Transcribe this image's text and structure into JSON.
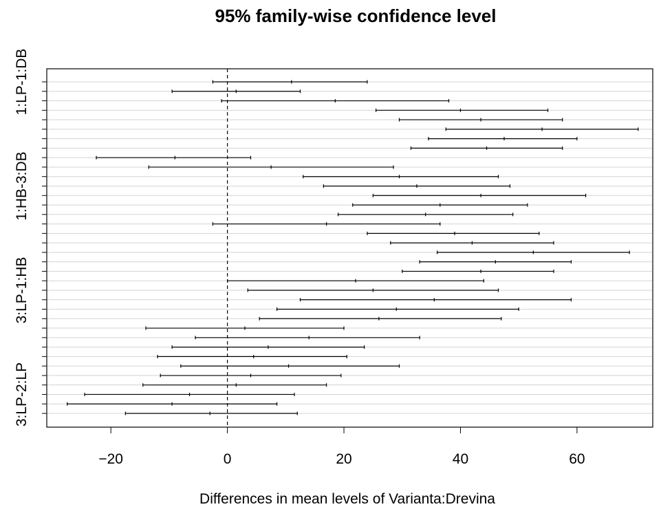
{
  "chart_data": {
    "type": "errorbar",
    "title": "95% family-wise confidence level",
    "xlabel": "Differences in mean levels of Varianta:Drevina",
    "ylabel": "",
    "xlim": [
      -31,
      73
    ],
    "xticks": [
      -20,
      0,
      20,
      40,
      60
    ],
    "reference_line_x": 0,
    "grid": "horizontal",
    "ytick_labels": [
      "1:LP-1:DB",
      "1:HB-3:DB",
      "3:LP-1:HB",
      "3:LP-2:LP"
    ],
    "ytick_label_rows": [
      0,
      11,
      22,
      33
    ],
    "intervals": [
      {
        "center": 11,
        "lower": -2.5,
        "upper": 24
      },
      {
        "center": 1.5,
        "lower": -9.5,
        "upper": 12.5
      },
      {
        "center": 18.5,
        "lower": -1,
        "upper": 38
      },
      {
        "center": 40,
        "lower": 25.5,
        "upper": 55
      },
      {
        "center": 43.5,
        "lower": 29.5,
        "upper": 57.5
      },
      {
        "center": 54,
        "lower": 37.5,
        "upper": 70.5
      },
      {
        "center": 47.5,
        "lower": 34.5,
        "upper": 60
      },
      {
        "center": 44.5,
        "lower": 31.5,
        "upper": 57.5
      },
      {
        "center": -9,
        "lower": -22.5,
        "upper": 4
      },
      {
        "center": 7.5,
        "lower": -13.5,
        "upper": 28.5
      },
      {
        "center": 29.5,
        "lower": 13,
        "upper": 46.5
      },
      {
        "center": 32.5,
        "lower": 16.5,
        "upper": 48.5
      },
      {
        "center": 43.5,
        "lower": 25,
        "upper": 61.5
      },
      {
        "center": 36.5,
        "lower": 21.5,
        "upper": 51.5
      },
      {
        "center": 34,
        "lower": 19,
        "upper": 49
      },
      {
        "center": 17,
        "lower": -2.5,
        "upper": 36.5
      },
      {
        "center": 39,
        "lower": 24,
        "upper": 53.5
      },
      {
        "center": 42,
        "lower": 28,
        "upper": 56
      },
      {
        "center": 52.5,
        "lower": 36,
        "upper": 69
      },
      {
        "center": 46,
        "lower": 33,
        "upper": 59
      },
      {
        "center": 43.5,
        "lower": 30,
        "upper": 56
      },
      {
        "center": 22,
        "lower": 0,
        "upper": 44
      },
      {
        "center": 25,
        "lower": 3.5,
        "upper": 46.5
      },
      {
        "center": 35.5,
        "lower": 12.5,
        "upper": 59
      },
      {
        "center": 29,
        "lower": 8.5,
        "upper": 50
      },
      {
        "center": 26,
        "lower": 5.5,
        "upper": 47
      },
      {
        "center": 3,
        "lower": -14,
        "upper": 20
      },
      {
        "center": 14,
        "lower": -5.5,
        "upper": 33
      },
      {
        "center": 7,
        "lower": -9.5,
        "upper": 23.5
      },
      {
        "center": 4.5,
        "lower": -12,
        "upper": 20.5
      },
      {
        "center": 10.5,
        "lower": -8,
        "upper": 29.5
      },
      {
        "center": 4,
        "lower": -11.5,
        "upper": 19.5
      },
      {
        "center": 1.5,
        "lower": -14.5,
        "upper": 17
      },
      {
        "center": -6.5,
        "lower": -24.5,
        "upper": 11.5
      },
      {
        "center": -9.5,
        "lower": -27.5,
        "upper": 8.5
      },
      {
        "center": -3,
        "lower": -17.5,
        "upper": 12
      }
    ]
  }
}
